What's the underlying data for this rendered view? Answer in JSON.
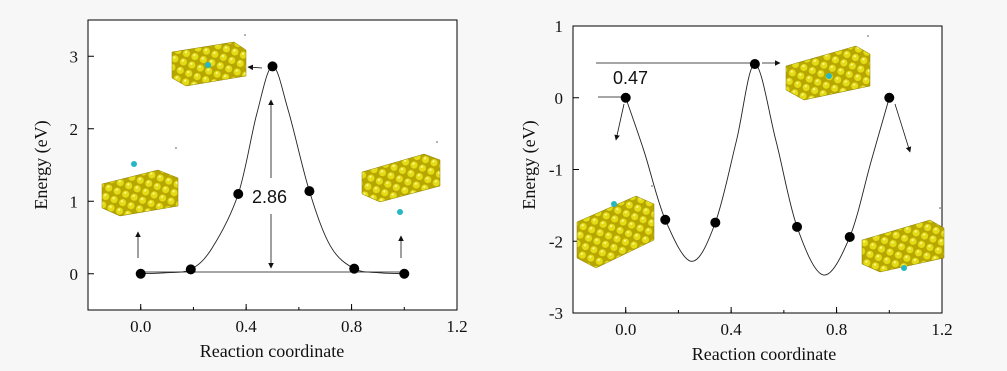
{
  "chart_data": [
    {
      "type": "line",
      "xlabel": "Reaction coordinate",
      "ylabel": "Energy (eV)",
      "xlim": [
        -0.2,
        1.2
      ],
      "ylim": [
        -0.5,
        3.5
      ],
      "xticks": [
        "0.0",
        "0.4",
        "0.8",
        "1.2"
      ],
      "yticks": [
        "0",
        "1",
        "2",
        "3"
      ],
      "series": [
        {
          "x": [
            0.0,
            0.19,
            0.37,
            0.5,
            0.64,
            0.81,
            1.0
          ],
          "y": [
            0.0,
            0.06,
            1.1,
            2.86,
            1.14,
            0.07,
            0.0
          ]
        }
      ],
      "annotations": [
        {
          "text": "2.86",
          "x": 0.5,
          "y": 1.3
        }
      ],
      "grid": false
    },
    {
      "type": "line",
      "xlabel": "Reaction coordinate",
      "ylabel": "Energy (eV)",
      "xlim": [
        -0.2,
        1.2
      ],
      "ylim": [
        -3,
        1
      ],
      "xticks": [
        "0.0",
        "0.4",
        "0.8",
        "1.2"
      ],
      "yticks": [
        "-3",
        "-2",
        "-1",
        "0",
        "1"
      ],
      "series": [
        {
          "x": [
            0.0,
            0.15,
            0.34,
            0.49,
            0.65,
            0.85,
            1.0
          ],
          "y": [
            0.0,
            -1.7,
            -1.74,
            0.47,
            -1.8,
            -1.94,
            0.0
          ]
        }
      ],
      "annotations": [
        {
          "text": "0.47",
          "x": 0.0,
          "y": 0.2
        }
      ],
      "grid": false
    }
  ]
}
